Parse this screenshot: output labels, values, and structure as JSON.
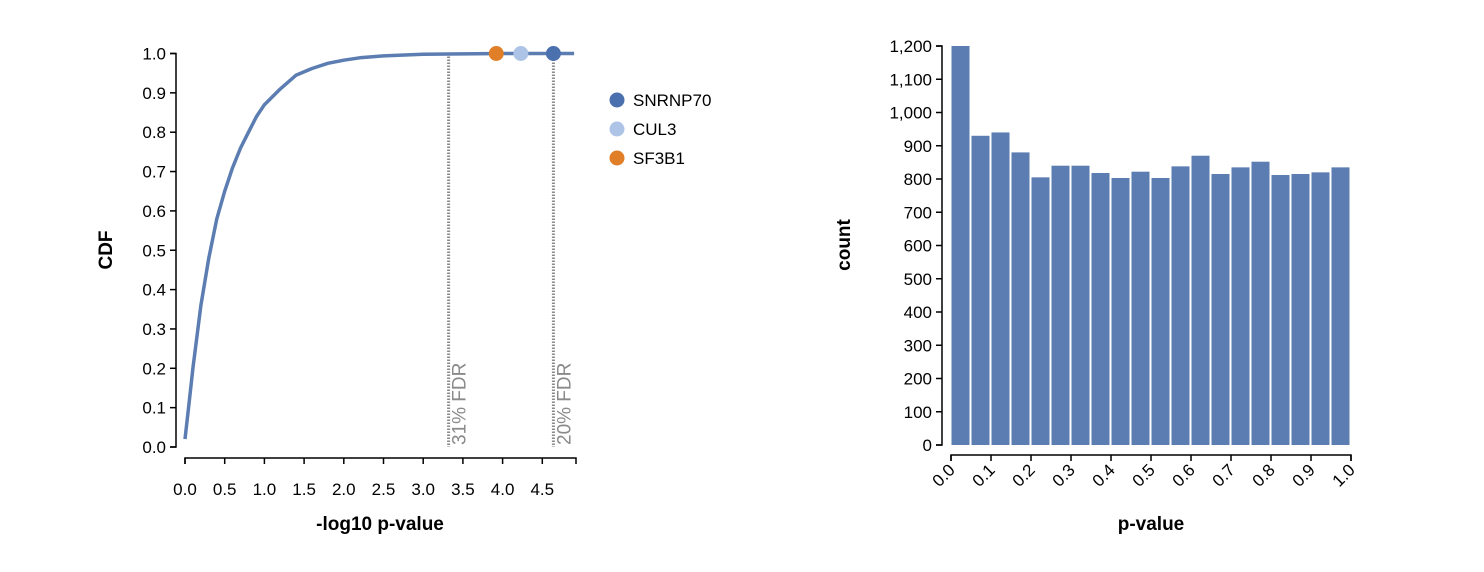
{
  "chart_data": [
    {
      "type": "line",
      "title": "",
      "xlabel": "-log10 p-value",
      "ylabel": "CDF",
      "xlim": [
        0,
        4.9
      ],
      "ylim": [
        0,
        1.0
      ],
      "x_ticks": [
        "0.0",
        "0.5",
        "1.0",
        "1.5",
        "2.0",
        "2.5",
        "3.0",
        "3.5",
        "4.0",
        "4.5"
      ],
      "y_ticks": [
        "0.0",
        "0.1",
        "0.2",
        "0.3",
        "0.4",
        "0.5",
        "0.6",
        "0.7",
        "0.8",
        "0.9",
        "1.0"
      ],
      "line_color": "#5b7db1",
      "series": [
        {
          "x": [
            0.0,
            0.05,
            0.1,
            0.15,
            0.2,
            0.3,
            0.4,
            0.5,
            0.6,
            0.7,
            0.8,
            0.9,
            1.0,
            1.2,
            1.4,
            1.6,
            1.8,
            2.0,
            2.2,
            2.5,
            3.0,
            3.5,
            4.0,
            4.5,
            4.9
          ],
          "y": [
            0.02,
            0.11,
            0.2,
            0.28,
            0.36,
            0.48,
            0.58,
            0.65,
            0.71,
            0.76,
            0.8,
            0.84,
            0.87,
            0.91,
            0.945,
            0.962,
            0.975,
            0.983,
            0.989,
            0.994,
            0.998,
            0.999,
            1.0,
            1.0,
            1.0
          ]
        }
      ],
      "threshold_lines": [
        {
          "x": 3.32,
          "label": "31% FDR"
        },
        {
          "x": 4.64,
          "label": "20% FDR"
        }
      ],
      "points": [
        {
          "name": "SNRNP70",
          "x": 4.64,
          "y": 1.0,
          "color": "#4a70ae"
        },
        {
          "name": "CUL3",
          "x": 4.23,
          "y": 1.0,
          "color": "#adc4e6"
        },
        {
          "name": "SF3B1",
          "x": 3.92,
          "y": 1.0,
          "color": "#e17f29"
        }
      ],
      "legend": [
        {
          "name": "SNRNP70",
          "color": "#4a70ae"
        },
        {
          "name": "CUL3",
          "color": "#adc4e6"
        },
        {
          "name": "SF3B1",
          "color": "#e17f29"
        }
      ],
      "legend_placement": "right"
    },
    {
      "type": "bar",
      "title": "",
      "xlabel": "p-value",
      "ylabel": "count",
      "xlim": [
        0,
        1.0
      ],
      "ylim": [
        0,
        1200
      ],
      "x_ticks": [
        "0.0",
        "0.1",
        "0.2",
        "0.3",
        "0.4",
        "0.5",
        "0.6",
        "0.7",
        "0.8",
        "0.9",
        "1.0"
      ],
      "y_ticks": [
        "0",
        "100",
        "200",
        "300",
        "400",
        "500",
        "600",
        "700",
        "800",
        "900",
        "1,000",
        "1,100",
        "1,200"
      ],
      "bar_color": "#5b7db1",
      "bin_width": 0.05,
      "bins": [
        0.0,
        0.05,
        0.1,
        0.15,
        0.2,
        0.25,
        0.3,
        0.35,
        0.4,
        0.45,
        0.5,
        0.55,
        0.6,
        0.65,
        0.7,
        0.75,
        0.8,
        0.85,
        0.9,
        0.95
      ],
      "values": [
        1200,
        930,
        940,
        880,
        805,
        840,
        840,
        818,
        803,
        822,
        803,
        838,
        870,
        815,
        835,
        852,
        812,
        815,
        820,
        835
      ]
    }
  ]
}
